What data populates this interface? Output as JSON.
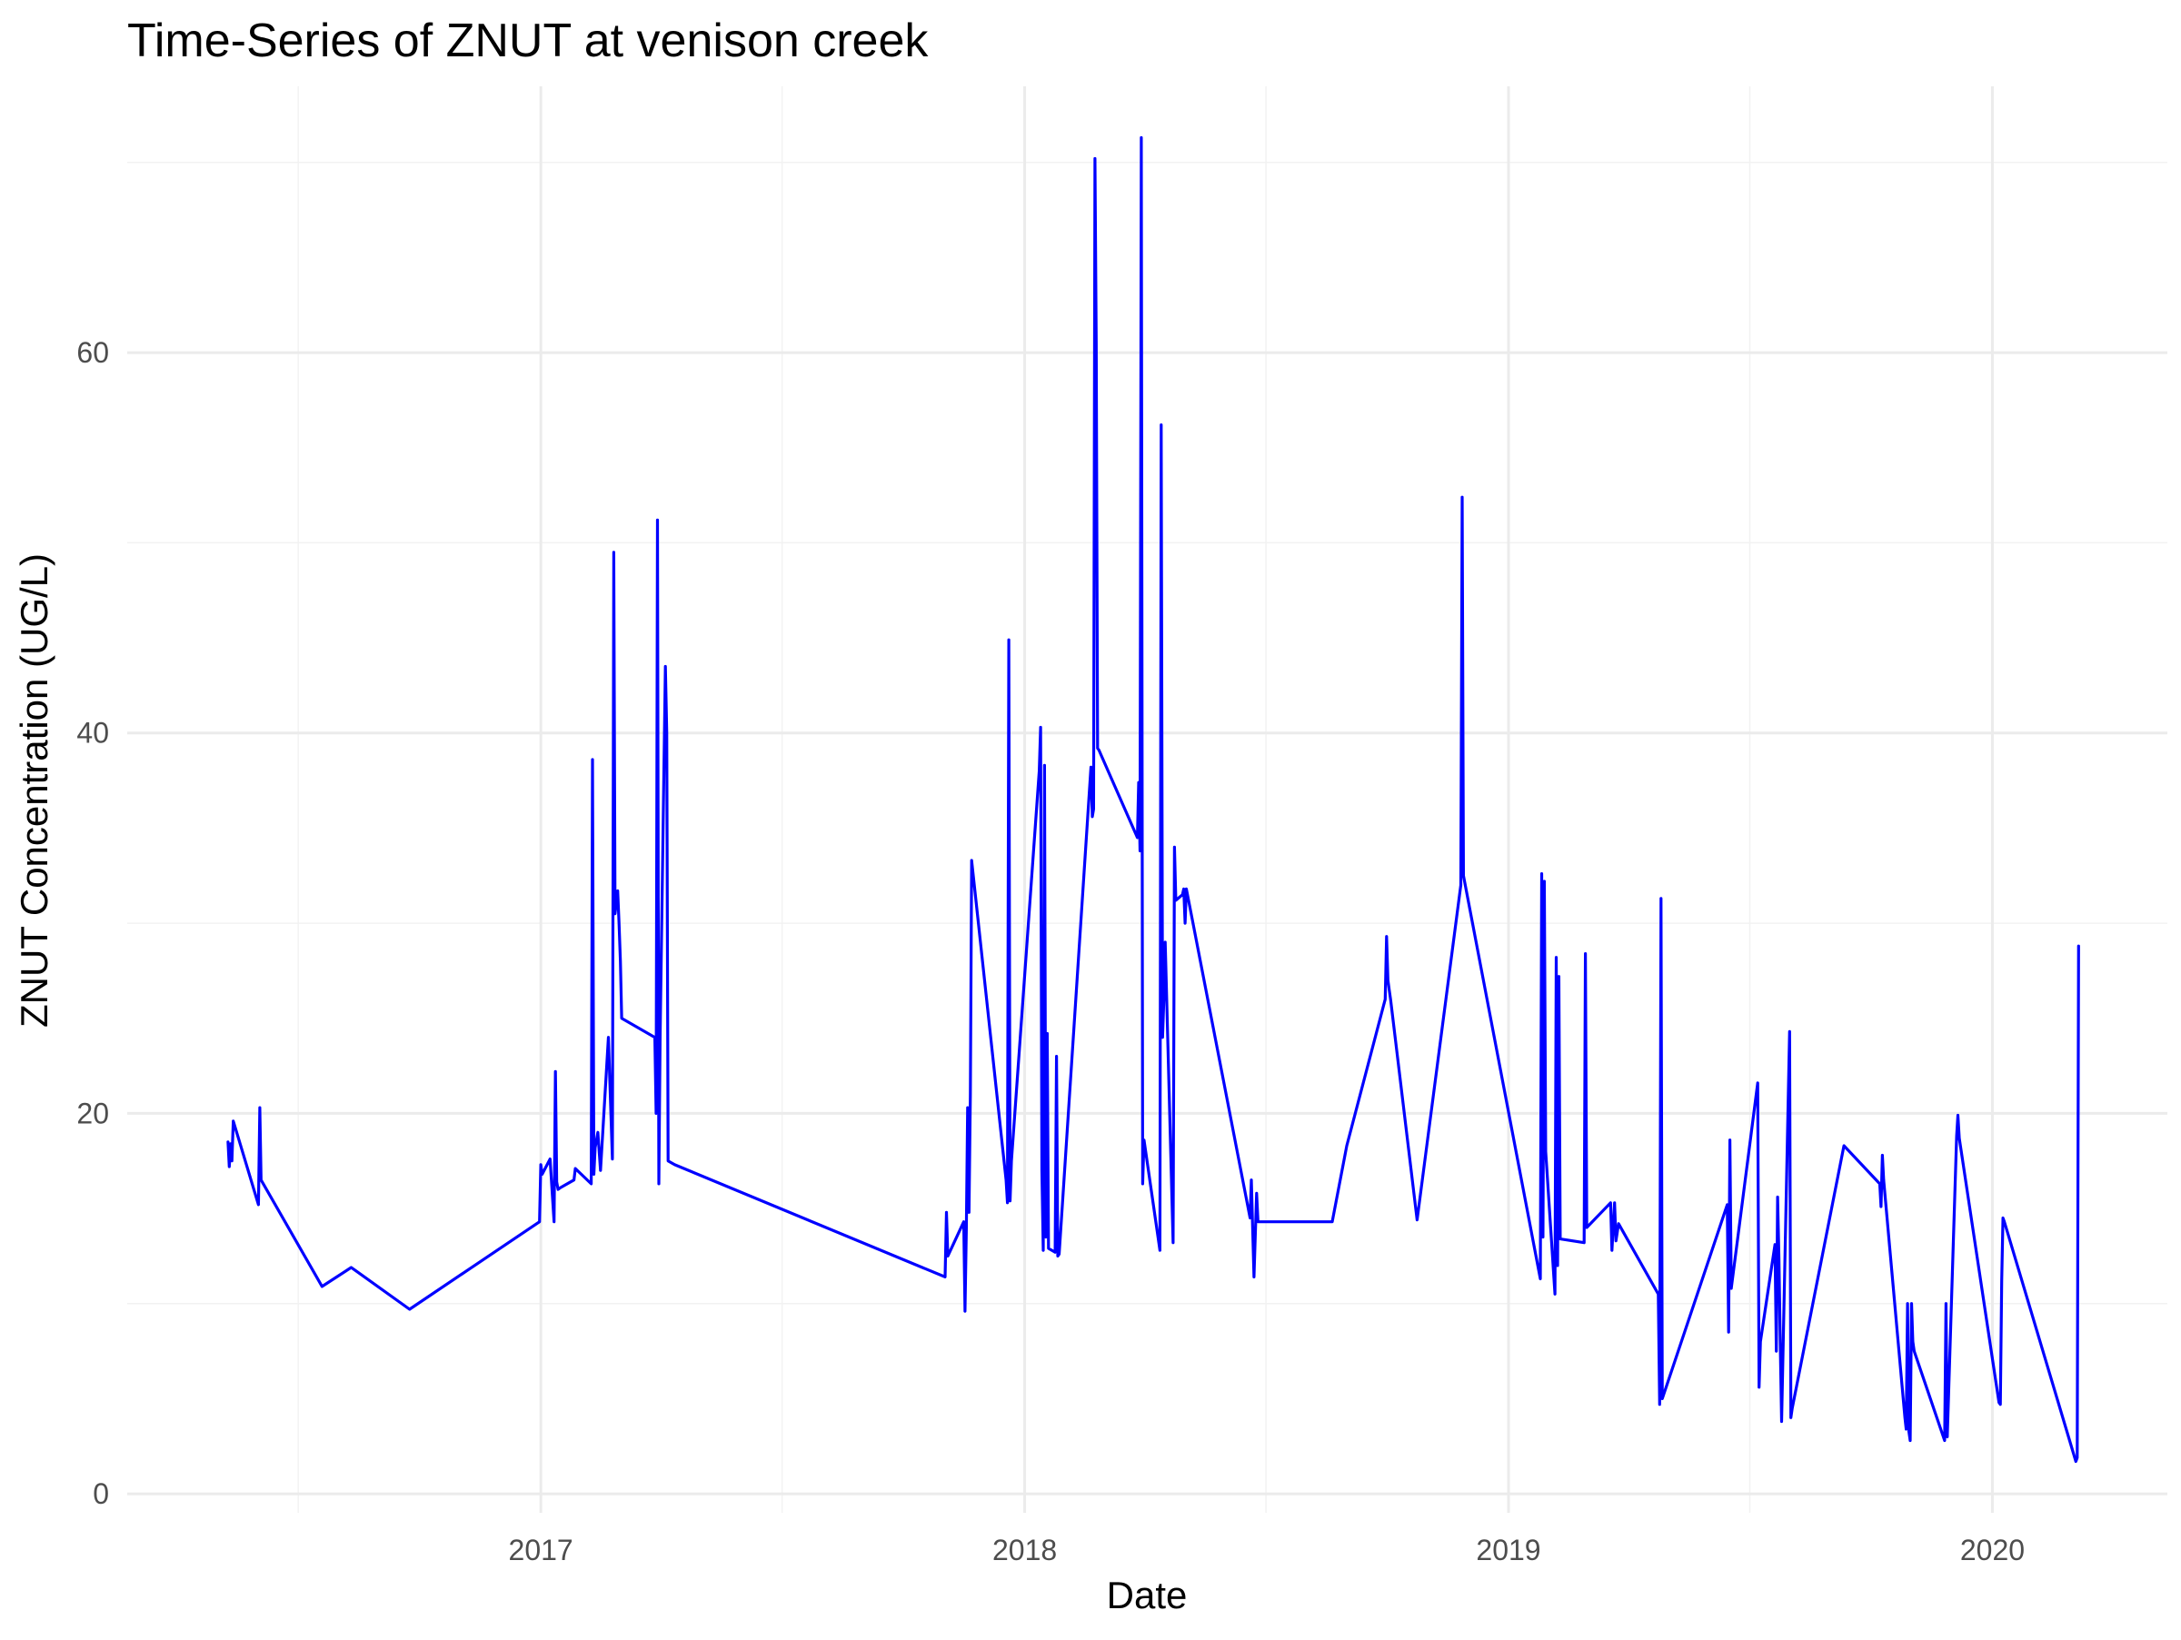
{
  "chart_data": {
    "type": "line",
    "title": "Time-Series of ZNUT at venison creek",
    "xlabel": "Date",
    "ylabel": "ZNUT Concentration (UG/L)",
    "xlim": [
      "2016-02-24",
      "2020-05-12"
    ],
    "ylim": [
      -1,
      74
    ],
    "grid": true,
    "legend": "none",
    "line_color": "#0000ff",
    "x_ticks": [
      {
        "value": "2017-01-01",
        "label": "2017"
      },
      {
        "value": "2018-01-01",
        "label": "2018"
      },
      {
        "value": "2019-01-01",
        "label": "2019"
      },
      {
        "value": "2020-01-01",
        "label": "2020"
      }
    ],
    "x_minor_ticks": [
      "2016-07-02",
      "2017-07-02",
      "2018-07-02",
      "2019-07-02"
    ],
    "y_ticks": [
      0,
      20,
      40,
      60
    ],
    "y_minor_ticks": [
      10,
      30,
      50,
      70
    ],
    "series": [
      {
        "x": [
          "2016-05-10",
          "2016-05-11",
          "2016-05-12",
          "2016-05-13",
          "2016-05-14",
          "2016-06-02",
          "2016-06-03",
          "2016-06-04",
          "2016-07-20",
          "2016-08-11",
          "2016-09-24",
          "2016-12-31",
          "2017-01-01",
          "2017-01-02",
          "2017-01-08",
          "2017-01-11",
          "2017-01-12",
          "2017-01-13",
          "2017-01-14",
          "2017-01-16",
          "2017-01-26",
          "2017-01-27",
          "2017-02-08",
          "2017-02-09",
          "2017-02-10",
          "2017-02-11",
          "2017-02-13",
          "2017-02-15",
          "2017-02-21",
          "2017-02-24",
          "2017-02-25",
          "2017-02-26",
          "2017-02-28",
          "2017-03-01",
          "2017-03-02",
          "2017-03-03",
          "2017-03-28",
          "2017-03-29",
          "2017-03-30",
          "2017-03-31",
          "2017-04-01",
          "2017-04-05",
          "2017-04-06",
          "2017-04-07",
          "2017-04-12",
          "2017-11-02",
          "2017-11-03",
          "2017-11-04",
          "2017-11-16",
          "2017-11-17",
          "2017-11-18",
          "2017-11-19",
          "2017-11-20",
          "2017-11-21",
          "2017-11-22",
          "2017-12-18",
          "2017-12-19",
          "2017-12-20",
          "2017-12-21",
          "2017-12-22",
          "2018-01-12",
          "2018-01-13",
          "2018-01-14",
          "2018-01-15",
          "2018-01-16",
          "2018-01-17",
          "2018-01-18",
          "2018-01-19",
          "2018-01-24",
          "2018-01-25",
          "2018-01-26",
          "2018-01-27",
          "2018-02-20",
          "2018-02-21",
          "2018-02-22",
          "2018-02-23",
          "2018-02-24",
          "2018-02-25",
          "2018-02-26",
          "2018-03-27",
          "2018-03-28",
          "2018-03-29",
          "2018-03-30",
          "2018-03-31",
          "2018-04-01",
          "2018-04-13",
          "2018-04-14",
          "2018-04-15",
          "2018-04-16",
          "2018-04-17",
          "2018-04-23",
          "2018-04-24",
          "2018-04-25",
          "2018-04-30",
          "2018-05-01",
          "2018-05-02",
          "2018-05-03",
          "2018-06-20",
          "2018-06-21",
          "2018-06-23",
          "2018-06-25",
          "2018-06-26",
          "2018-06-27",
          "2018-06-28",
          "2018-08-21",
          "2018-09-01",
          "2018-09-30",
          "2018-10-01",
          "2018-10-02",
          "2018-10-03",
          "2018-10-04",
          "2018-10-24",
          "2018-11-26",
          "2018-11-27",
          "2018-11-28",
          "2019-01-25",
          "2019-01-26",
          "2019-01-27",
          "2019-01-28",
          "2019-01-29",
          "2019-02-05",
          "2019-02-06",
          "2019-02-07",
          "2019-02-08",
          "2019-02-09",
          "2019-02-27",
          "2019-02-28",
          "2019-03-01",
          "2019-03-19",
          "2019-03-20",
          "2019-03-22",
          "2019-03-23",
          "2019-03-25",
          "2019-04-24",
          "2019-04-25",
          "2019-04-26",
          "2019-04-27",
          "2019-06-15",
          "2019-06-16",
          "2019-06-17",
          "2019-06-18",
          "2019-07-08",
          "2019-07-09",
          "2019-07-10",
          "2019-07-21",
          "2019-07-22",
          "2019-07-23",
          "2019-07-24",
          "2019-07-25",
          "2019-07-26",
          "2019-08-01",
          "2019-08-02",
          "2019-08-03",
          "2019-09-11",
          "2019-10-08",
          "2019-10-09",
          "2019-10-10",
          "2019-10-11",
          "2019-10-27",
          "2019-10-28",
          "2019-10-29",
          "2019-10-30",
          "2019-10-31",
          "2019-11-01",
          "2019-11-02",
          "2019-11-03",
          "2019-11-26",
          "2019-11-27",
          "2019-11-28",
          "2019-12-05",
          "2019-12-06",
          "2019-12-07",
          "2020-01-06",
          "2020-01-07",
          "2020-01-08",
          "2020-01-09",
          "2020-01-10",
          "2020-03-04",
          "2020-03-05",
          "2020-03-06"
        ],
        "y": [
          18.5,
          17.2,
          18.4,
          17.5,
          19.6,
          15.2,
          20.3,
          16.5,
          10.9,
          11.9,
          9.7,
          14.3,
          17.3,
          16.8,
          17.6,
          14.3,
          22.2,
          16.4,
          16.0,
          16.1,
          16.5,
          17.1,
          16.3,
          38.6,
          16.8,
          18.2,
          19.0,
          17.0,
          24.0,
          17.6,
          49.5,
          30.5,
          31.7,
          30.0,
          28.0,
          25.0,
          24.0,
          20.0,
          51.2,
          16.3,
          24.0,
          43.5,
          40.0,
          17.5,
          17.3,
          11.4,
          14.8,
          12.5,
          14.3,
          9.6,
          14.0,
          20.3,
          14.8,
          21.0,
          33.3,
          16.5,
          15.3,
          44.9,
          15.4,
          17.5,
          38.0,
          40.3,
          17.0,
          12.8,
          38.3,
          13.5,
          24.2,
          12.9,
          12.7,
          23.0,
          12.5,
          12.6,
          38.2,
          35.6,
          36.0,
          70.2,
          60.5,
          39.2,
          39.1,
          34.5,
          37.4,
          33.8,
          71.3,
          16.3,
          18.6,
          12.8,
          56.2,
          24.0,
          26.0,
          29.0,
          13.2,
          34.0,
          31.2,
          31.5,
          31.8,
          30.0,
          31.8,
          14.5,
          16.5,
          11.4,
          15.8,
          14.3,
          14.3,
          14.3,
          14.3,
          18.3,
          26.0,
          29.3,
          27.0,
          26.5,
          26.0,
          14.4,
          32.0,
          52.4,
          32.5,
          11.3,
          32.6,
          13.5,
          32.2,
          18.0,
          10.5,
          28.2,
          12.0,
          27.2,
          13.4,
          13.2,
          28.4,
          14.0,
          15.3,
          12.8,
          15.3,
          13.3,
          14.2,
          10.5,
          4.7,
          31.3,
          5.0,
          15.2,
          8.5,
          18.6,
          10.8,
          21.6,
          5.6,
          8.0,
          13.1,
          7.5,
          15.6,
          12.3,
          8.0,
          3.8,
          24.3,
          4.0,
          4.5,
          18.3,
          16.3,
          15.1,
          17.8,
          16.5,
          4.0,
          3.4,
          10.0,
          3.3,
          2.8,
          10.0,
          8.0,
          7.5,
          2.8,
          10.0,
          3.0,
          18.8,
          19.9,
          18.7,
          4.8,
          4.7,
          11.2,
          14.5,
          14.3,
          1.7,
          1.9,
          28.8
        ]
      }
    ]
  }
}
